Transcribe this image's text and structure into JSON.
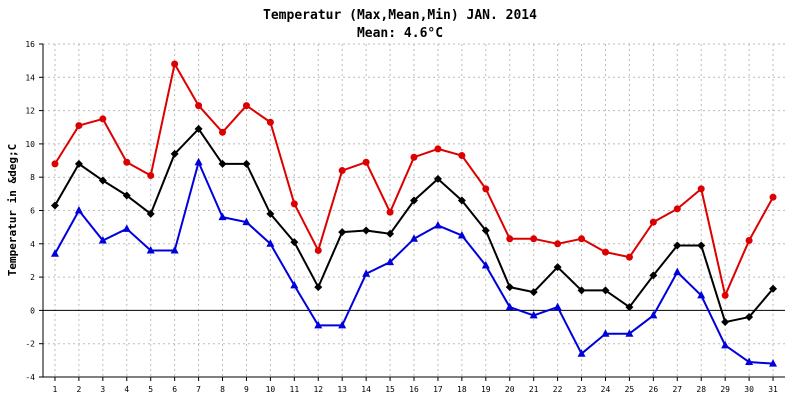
{
  "chart_data": {
    "type": "line",
    "title": "Temperatur (Max,Mean,Min) JAN. 2014",
    "subtitle": "Mean: 4.6°C",
    "xlabel": "",
    "ylabel": "Temperatur in &deg;C",
    "ylim": [
      -4,
      16
    ],
    "yticks": [
      -4,
      -2,
      0,
      2,
      4,
      6,
      8,
      10,
      12,
      14,
      16
    ],
    "grid": true,
    "x": [
      1,
      2,
      3,
      4,
      5,
      6,
      7,
      8,
      9,
      10,
      11,
      12,
      13,
      14,
      15,
      16,
      17,
      18,
      19,
      20,
      21,
      22,
      23,
      24,
      25,
      26,
      27,
      28,
      29,
      30,
      31
    ],
    "series": [
      {
        "color": "#dd0000",
        "marker": "circle",
        "values": [
          8.8,
          11.1,
          11.5,
          8.9,
          8.1,
          14.8,
          12.3,
          10.7,
          12.3,
          11.3,
          6.4,
          3.6,
          8.4,
          8.9,
          5.9,
          9.2,
          9.7,
          9.3,
          7.3,
          4.3,
          4.3,
          4.0,
          4.3,
          3.5,
          3.2,
          5.3,
          6.1,
          7.3,
          0.9,
          4.2,
          6.8
        ]
      },
      {
        "color": "#000000",
        "marker": "diamond",
        "values": [
          6.3,
          8.8,
          7.8,
          6.9,
          5.8,
          9.4,
          10.9,
          8.8,
          8.8,
          5.8,
          4.1,
          1.4,
          4.7,
          4.8,
          4.6,
          6.6,
          7.9,
          6.6,
          4.8,
          1.4,
          1.1,
          2.6,
          1.2,
          1.2,
          0.2,
          2.1,
          3.9,
          3.9,
          -0.7,
          -0.4,
          1.3
        ]
      },
      {
        "color": "#0000dd",
        "marker": "triangle",
        "values": [
          3.4,
          6.0,
          4.2,
          4.9,
          3.6,
          3.6,
          8.9,
          5.6,
          5.3,
          4.0,
          1.5,
          -0.9,
          -0.9,
          2.2,
          2.9,
          4.3,
          5.1,
          4.5,
          2.7,
          0.2,
          -0.3,
          0.2,
          -2.6,
          -1.4,
          -1.4,
          -0.3,
          2.3,
          0.9,
          -2.1,
          -3.1,
          -3.2
        ]
      }
    ]
  }
}
